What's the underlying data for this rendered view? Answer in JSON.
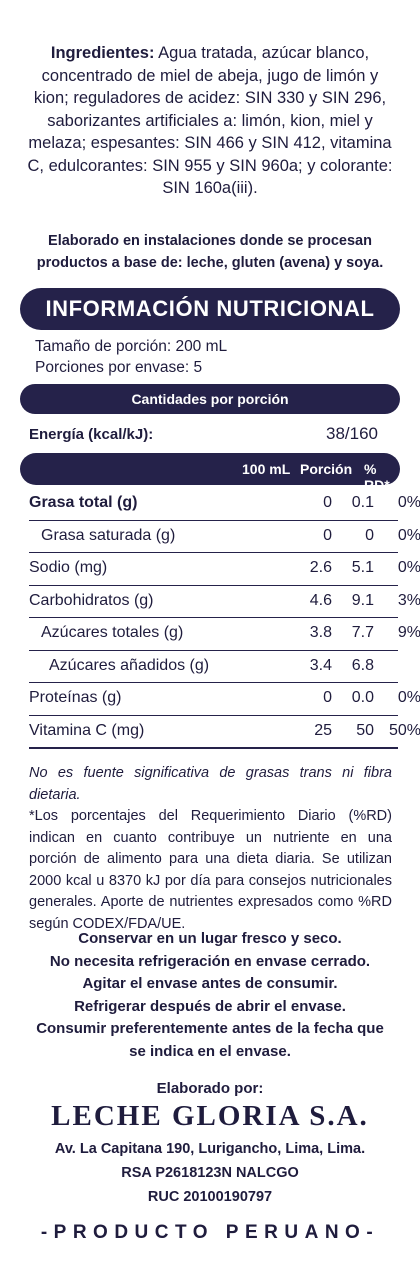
{
  "ingredients": {
    "label": "Ingredientes:",
    "text": " Agua tratada, azúcar blanco, concentrado de miel de abeja, jugo de limón y kion; reguladores de acidez: SIN 330 y SIN 296, saborizantes artificiales a: limón, kion, miel y melaza; espesantes: SIN 466 y SIN 412, vitamina C, edulcorantes: SIN 955 y SIN 960a; y colorante: SIN 160a(iii)."
  },
  "facility_notice": [
    "Elaborado en instalaciones donde se procesan",
    "productos a base de: leche, gluten (avena) y soya."
  ],
  "nutrition": {
    "title": "INFORMACIÓN NUTRICIONAL",
    "serving_size": "Tamaño de porción: 200 mL",
    "servings_per_container": "Porciones por envase: 5",
    "per_serving_header": "Cantidades por porción",
    "energy_label": "Energía (kcal/kJ):",
    "energy_value": "38/160",
    "columns": [
      "100 mL",
      "Porción",
      "% RD*"
    ],
    "rows": [
      {
        "label": "Grasa total (g)",
        "per100": "0",
        "portion": "0.1",
        "rd": "0%",
        "bold": true,
        "indent": 0
      },
      {
        "label": "Grasa saturada (g)",
        "per100": "0",
        "portion": "0",
        "rd": "0%",
        "bold": false,
        "indent": 1
      },
      {
        "label": "Sodio (mg)",
        "per100": "2.6",
        "portion": "5.1",
        "rd": "0%",
        "bold": false,
        "indent": 0
      },
      {
        "label": "Carbohidratos (g)",
        "per100": "4.6",
        "portion": "9.1",
        "rd": "3%",
        "bold": false,
        "indent": 0
      },
      {
        "label": "Azúcares totales (g)",
        "per100": "3.8",
        "portion": "7.7",
        "rd": "9%",
        "bold": false,
        "indent": 1
      },
      {
        "label": "Azúcares añadidos (g)",
        "per100": "3.4",
        "portion": "6.8",
        "rd": "",
        "bold": false,
        "indent": 2
      },
      {
        "label": "Proteínas (g)",
        "per100": "0",
        "portion": "0.0",
        "rd": "0%",
        "bold": false,
        "indent": 0
      },
      {
        "label": "Vitamina C (mg)",
        "per100": "25",
        "portion": "50",
        "rd": "50%",
        "bold": false,
        "indent": 0
      }
    ]
  },
  "notes": {
    "trans_fat": "No es fuente significativa de grasas trans ni fibra dietaria.",
    "rd_explanation": "*Los porcentajes del Requerimiento Diario (%RD) indican en cuanto contribuye un nutriente en una porción de alimento para una dieta diaria. Se utilizan 2000 kcal u 8370 kJ por día para consejos nutricionales generales. Aporte de nutrientes expresados como %RD según CODEX/FDA/UE."
  },
  "storage": [
    "Conservar en un lugar fresco y seco.",
    "No necesita refrigeración en envase cerrado.",
    "Agitar el envase antes de consumir.",
    "Refrigerar después de abrir el envase.",
    "Consumir preferentemente antes de la fecha que",
    "se indica en el envase."
  ],
  "manufacturer": {
    "made_by": "Elaborado por:",
    "name": "LECHE GLORIA S.A.",
    "address": "Av. La Capitana 190, Lurigancho, Lima, Lima.",
    "rsa": "RSA P2618123N NALCGO",
    "ruc": "RUC 20100190797"
  },
  "origin": "-PRODUCTO PERUANO-"
}
